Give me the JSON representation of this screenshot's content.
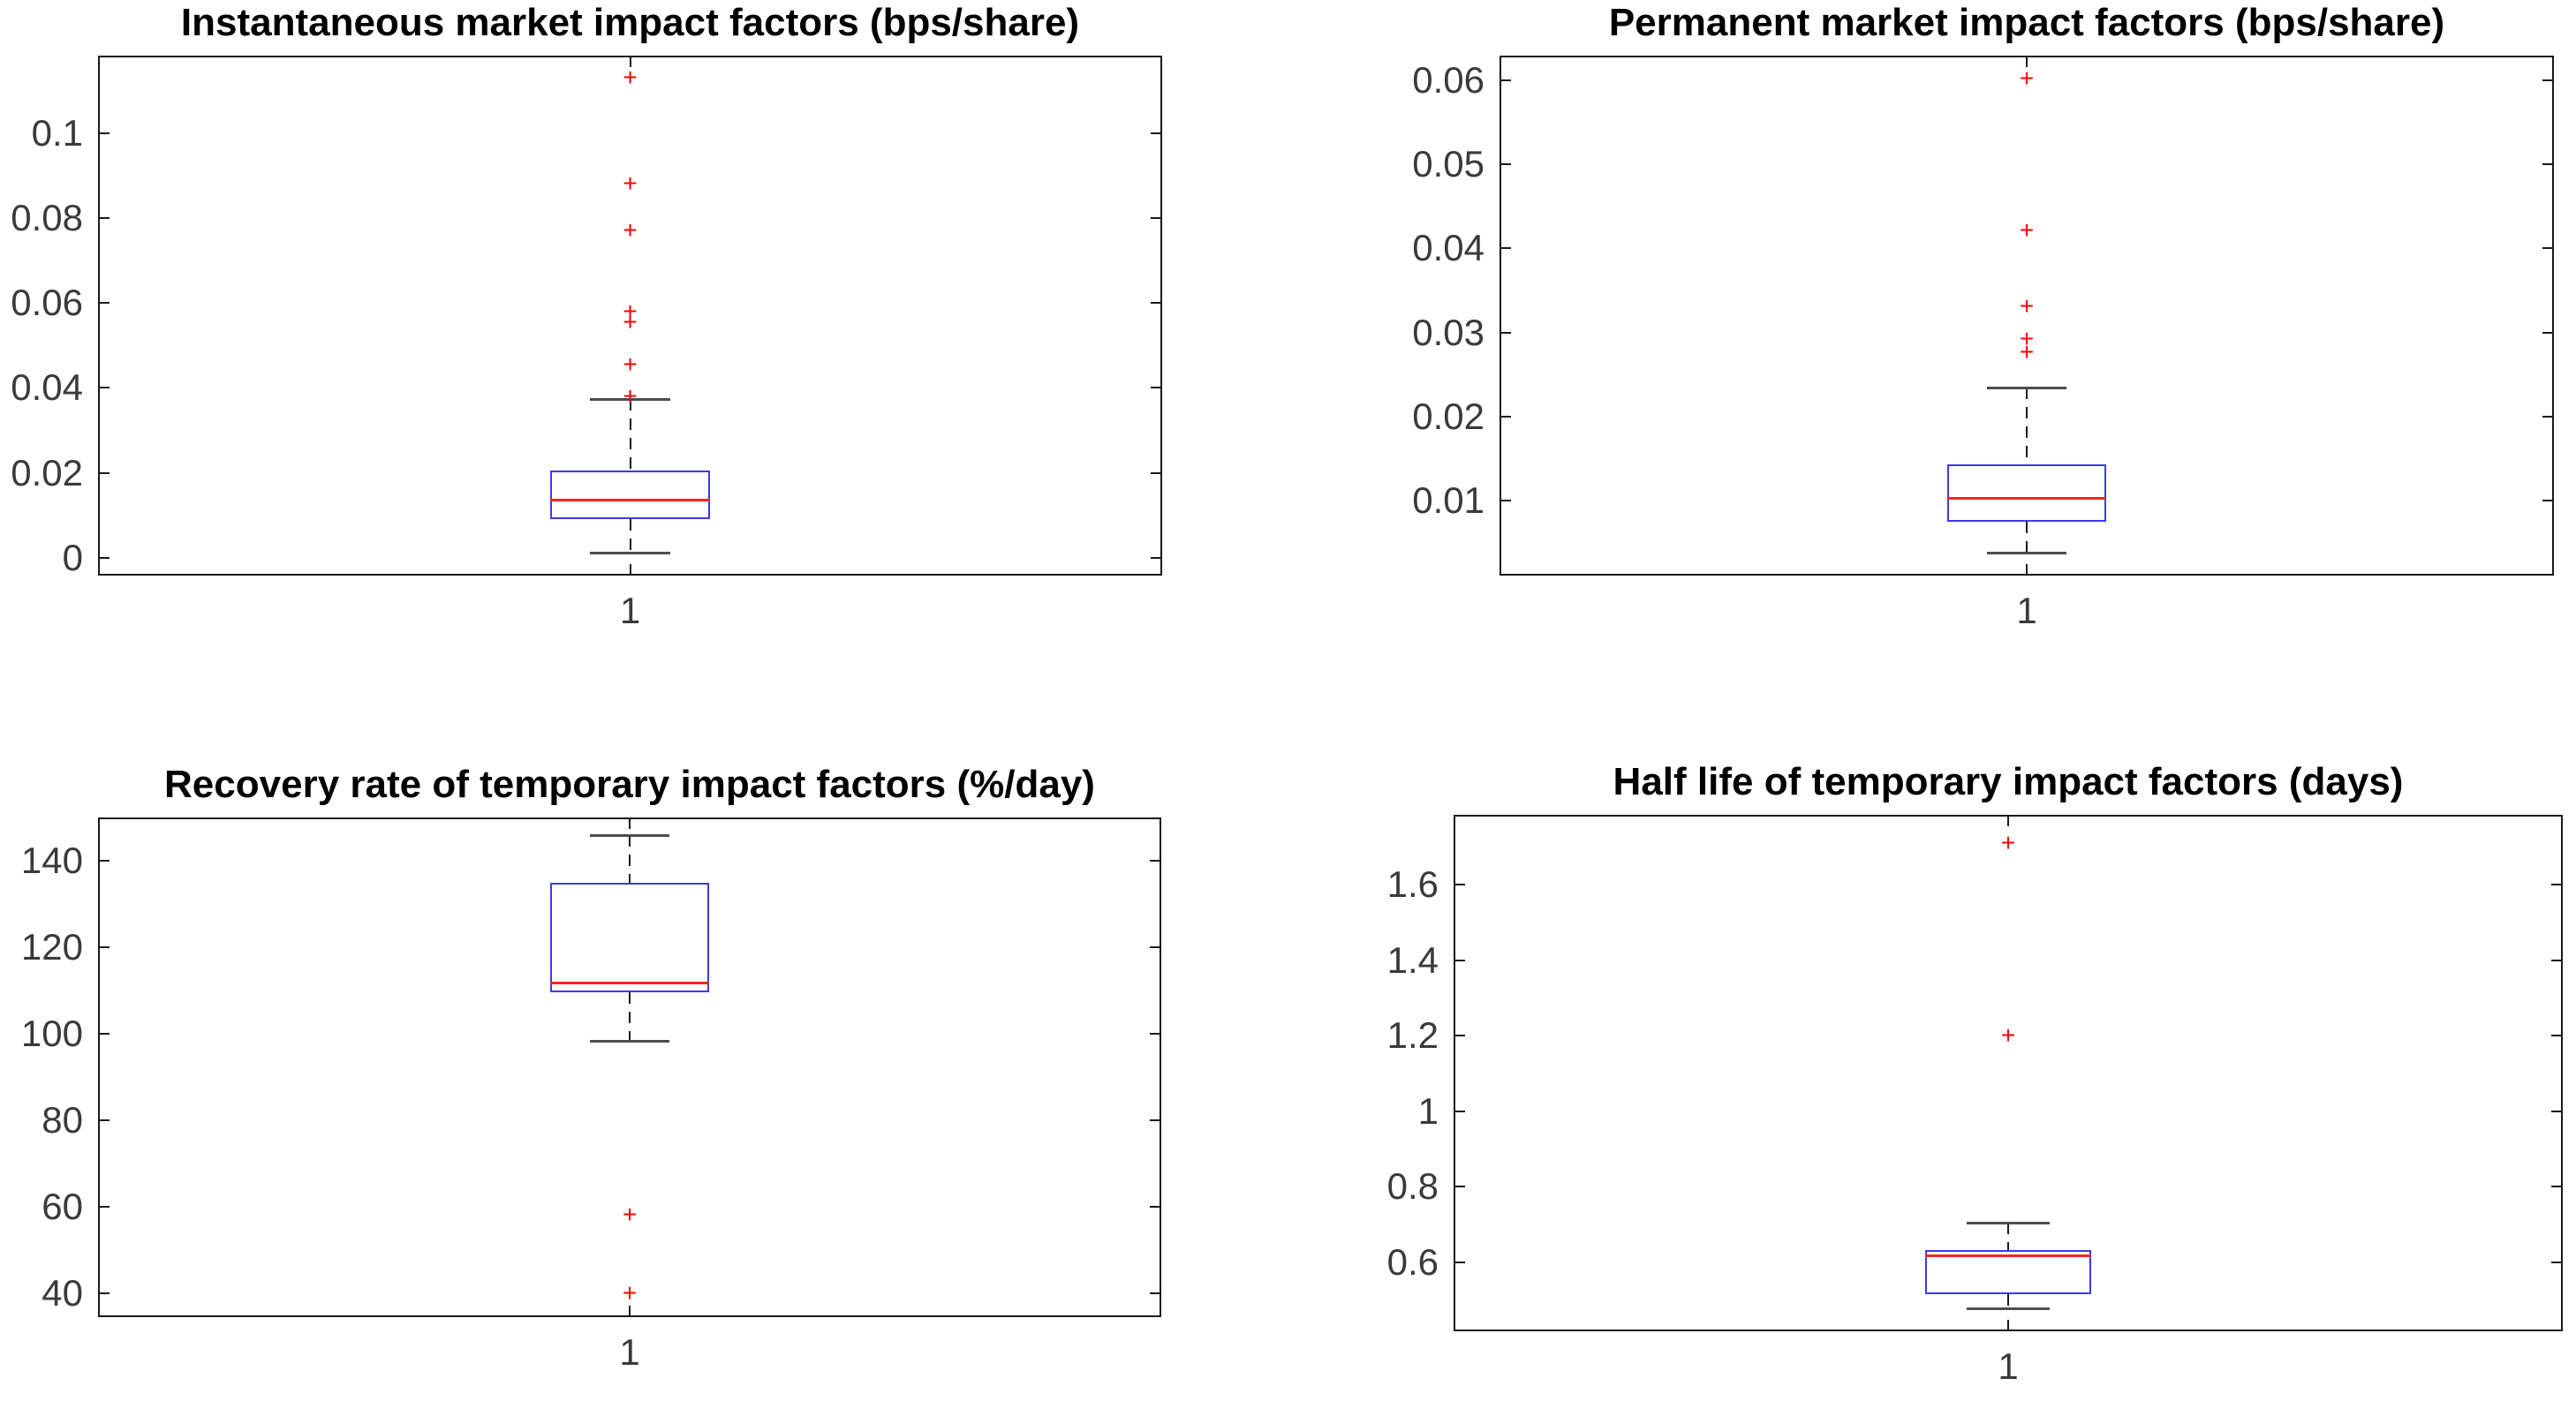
{
  "figure": {
    "background": "#ffffff"
  },
  "colors": {
    "axis": "#1a1a1a",
    "tick_label_text": "#3a3a3a",
    "title_text": "#000000",
    "box": "#3a3af0",
    "median": "#f52520",
    "whisker": "#1a1a1a",
    "whisker_cap": "#4d4d4d",
    "outlier": "#ff0000"
  },
  "chart_data": [
    {
      "type": "box",
      "title": "Instantaneous market impact factors (bps/share)",
      "x_tick_label": "1",
      "ylim": [
        -0.0042,
        0.1182
      ],
      "grid": false,
      "yticks": [
        {
          "value": 0,
          "label": "0"
        },
        {
          "value": 0.02,
          "label": "0.02"
        },
        {
          "value": 0.04,
          "label": "0.04"
        },
        {
          "value": 0.06,
          "label": "0.06"
        },
        {
          "value": 0.08,
          "label": "0.08"
        },
        {
          "value": 0.1,
          "label": "0.1"
        }
      ],
      "box": {
        "whisker_low": 0.0013,
        "q1": 0.0092,
        "median": 0.0136,
        "q3": 0.0206,
        "whisker_high": 0.0374
      },
      "outliers": [
        0.038,
        0.0455,
        0.0555,
        0.058,
        0.077,
        0.088,
        0.113
      ]
    },
    {
      "type": "box",
      "title": "Permanent market impact factors (bps/share)",
      "x_tick_label": "1",
      "ylim": [
        0.0011,
        0.0629
      ],
      "grid": false,
      "yticks": [
        {
          "value": 0.01,
          "label": "0.01"
        },
        {
          "value": 0.02,
          "label": "0.02"
        },
        {
          "value": 0.03,
          "label": "0.03"
        },
        {
          "value": 0.04,
          "label": "0.04"
        },
        {
          "value": 0.05,
          "label": "0.05"
        },
        {
          "value": 0.06,
          "label": "0.06"
        }
      ],
      "box": {
        "whisker_low": 0.0038,
        "q1": 0.0075,
        "median": 0.0103,
        "q3": 0.0143,
        "whisker_high": 0.0234
      },
      "outliers": [
        0.0276,
        0.0292,
        0.0331,
        0.0421,
        0.0602
      ]
    },
    {
      "type": "box",
      "title": "Recovery rate of temporary impact factors (%/day)",
      "x_tick_label": "1",
      "ylim": [
        34.6,
        149.9
      ],
      "grid": false,
      "yticks": [
        {
          "value": 40,
          "label": "40"
        },
        {
          "value": 60,
          "label": "60"
        },
        {
          "value": 80,
          "label": "80"
        },
        {
          "value": 100,
          "label": "100"
        },
        {
          "value": 120,
          "label": "120"
        },
        {
          "value": 140,
          "label": "140"
        }
      ],
      "box": {
        "whisker_low": 98.3,
        "q1": 109.5,
        "median": 111.8,
        "q3": 134.8,
        "whisker_high": 145.9
      },
      "outliers": [
        40.2,
        58.2
      ]
    },
    {
      "type": "box",
      "title": "Half life of temporary impact factors (days)",
      "x_tick_label": "1",
      "ylim": [
        0.417,
        1.785
      ],
      "grid": false,
      "yticks": [
        {
          "value": 0.6,
          "label": "0.6"
        },
        {
          "value": 0.8,
          "label": "0.8"
        },
        {
          "value": 1.0,
          "label": "1"
        },
        {
          "value": 1.2,
          "label": "1.2"
        },
        {
          "value": 1.4,
          "label": "1.4"
        },
        {
          "value": 1.6,
          "label": "1.6"
        }
      ],
      "box": {
        "whisker_low": 0.477,
        "q1": 0.515,
        "median": 0.619,
        "q3": 0.633,
        "whisker_high": 0.704
      },
      "outliers": [
        1.2,
        1.71
      ]
    }
  ]
}
